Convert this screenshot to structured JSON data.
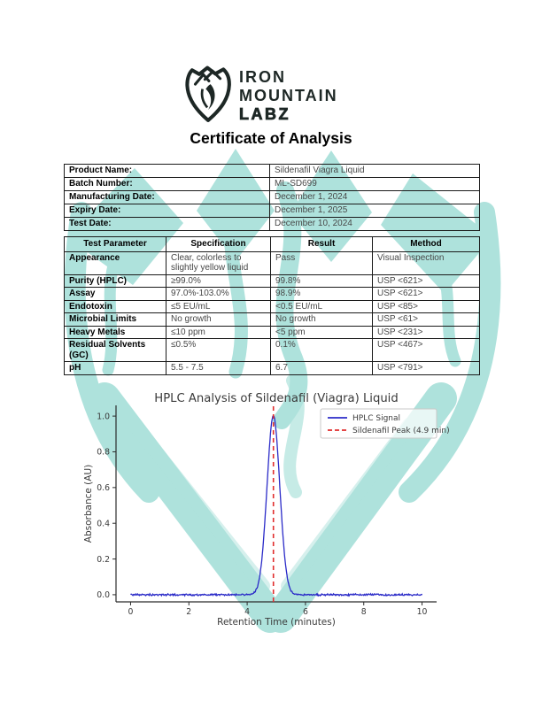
{
  "logo": {
    "line1": "IRON",
    "line2": "MOUNTAIN",
    "line3": "LABZ"
  },
  "document": {
    "title": "Certificate of Analysis"
  },
  "product_info": {
    "rows": [
      {
        "label": "Product Name:",
        "value": "Sildenafil Viagra Liquid"
      },
      {
        "label": "Batch Number:",
        "value": "ML-SD699"
      },
      {
        "label": "Manufacturing Date:",
        "value": "December 1, 2024"
      },
      {
        "label": "Expiry Date:",
        "value": "December 1, 2025"
      },
      {
        "label": "Test Date:",
        "value": "December 10, 2024"
      }
    ]
  },
  "results_table": {
    "headers": [
      "Test Parameter",
      "Specification",
      "Result",
      "Method"
    ],
    "rows": [
      [
        "Appearance",
        "Clear, colorless to slightly yellow liquid",
        "Pass",
        "Visual Inspection"
      ],
      [
        "Purity (HPLC)",
        "≥99.0%",
        "99.8%",
        "USP <621>"
      ],
      [
        "Assay",
        "97.0%-103.0%",
        "98.9%",
        "USP <621>"
      ],
      [
        "Endotoxin",
        "≤5 EU/mL",
        "<0.5 EU/mL",
        "USP <85>"
      ],
      [
        "Microbial Limits",
        "No growth",
        "No growth",
        "USP <61>"
      ],
      [
        "Heavy Metals",
        "≤10 ppm",
        "<5 ppm",
        "USP <231>"
      ],
      [
        "Residual Solvents (GC)",
        "≤0.5%",
        "0.1%",
        "USP <467>"
      ],
      [
        "pH",
        "5.5 - 7.5",
        "6.7",
        "USP <791>"
      ]
    ]
  },
  "chart_data": {
    "type": "line",
    "title": "HPLC Analysis of Sildenafil (Viagra) Liquid",
    "xlabel": "Retention Time (minutes)",
    "ylabel": "Absorbance (AU)",
    "xlim": [
      -0.5,
      10.5
    ],
    "ylim": [
      -0.04,
      1.06
    ],
    "xticks": [
      0,
      2,
      4,
      6,
      8,
      10
    ],
    "yticks": [
      0.0,
      0.2,
      0.4,
      0.6,
      0.8,
      1.0
    ],
    "grid": false,
    "legend_position": "upper right",
    "legend": [
      "HPLC Signal",
      "Sildenafil Peak (4.9 min)"
    ],
    "series": [
      {
        "name": "HPLC Signal",
        "shape": "gaussian_peak",
        "x_range": [
          0,
          10
        ],
        "baseline_au": 0.0,
        "noise_amplitude_au": 0.006,
        "peak_center_min": 4.9,
        "peak_height_au": 1.0,
        "peak_sigma_min": 0.22,
        "color": "#2b2bc8"
      }
    ],
    "annotations": [
      {
        "type": "vline",
        "x": 4.9,
        "style": "dashed",
        "color": "#e02c2c",
        "label": "Sildenafil Peak (4.9 min)"
      }
    ]
  },
  "colors": {
    "watermark": "#aee2dc",
    "signal": "#2b2bc8",
    "peak_marker": "#e02c2c",
    "chart_text": "#3a3a3a",
    "axis": "#2b2b2b",
    "logo_ink": "#1d2725"
  }
}
